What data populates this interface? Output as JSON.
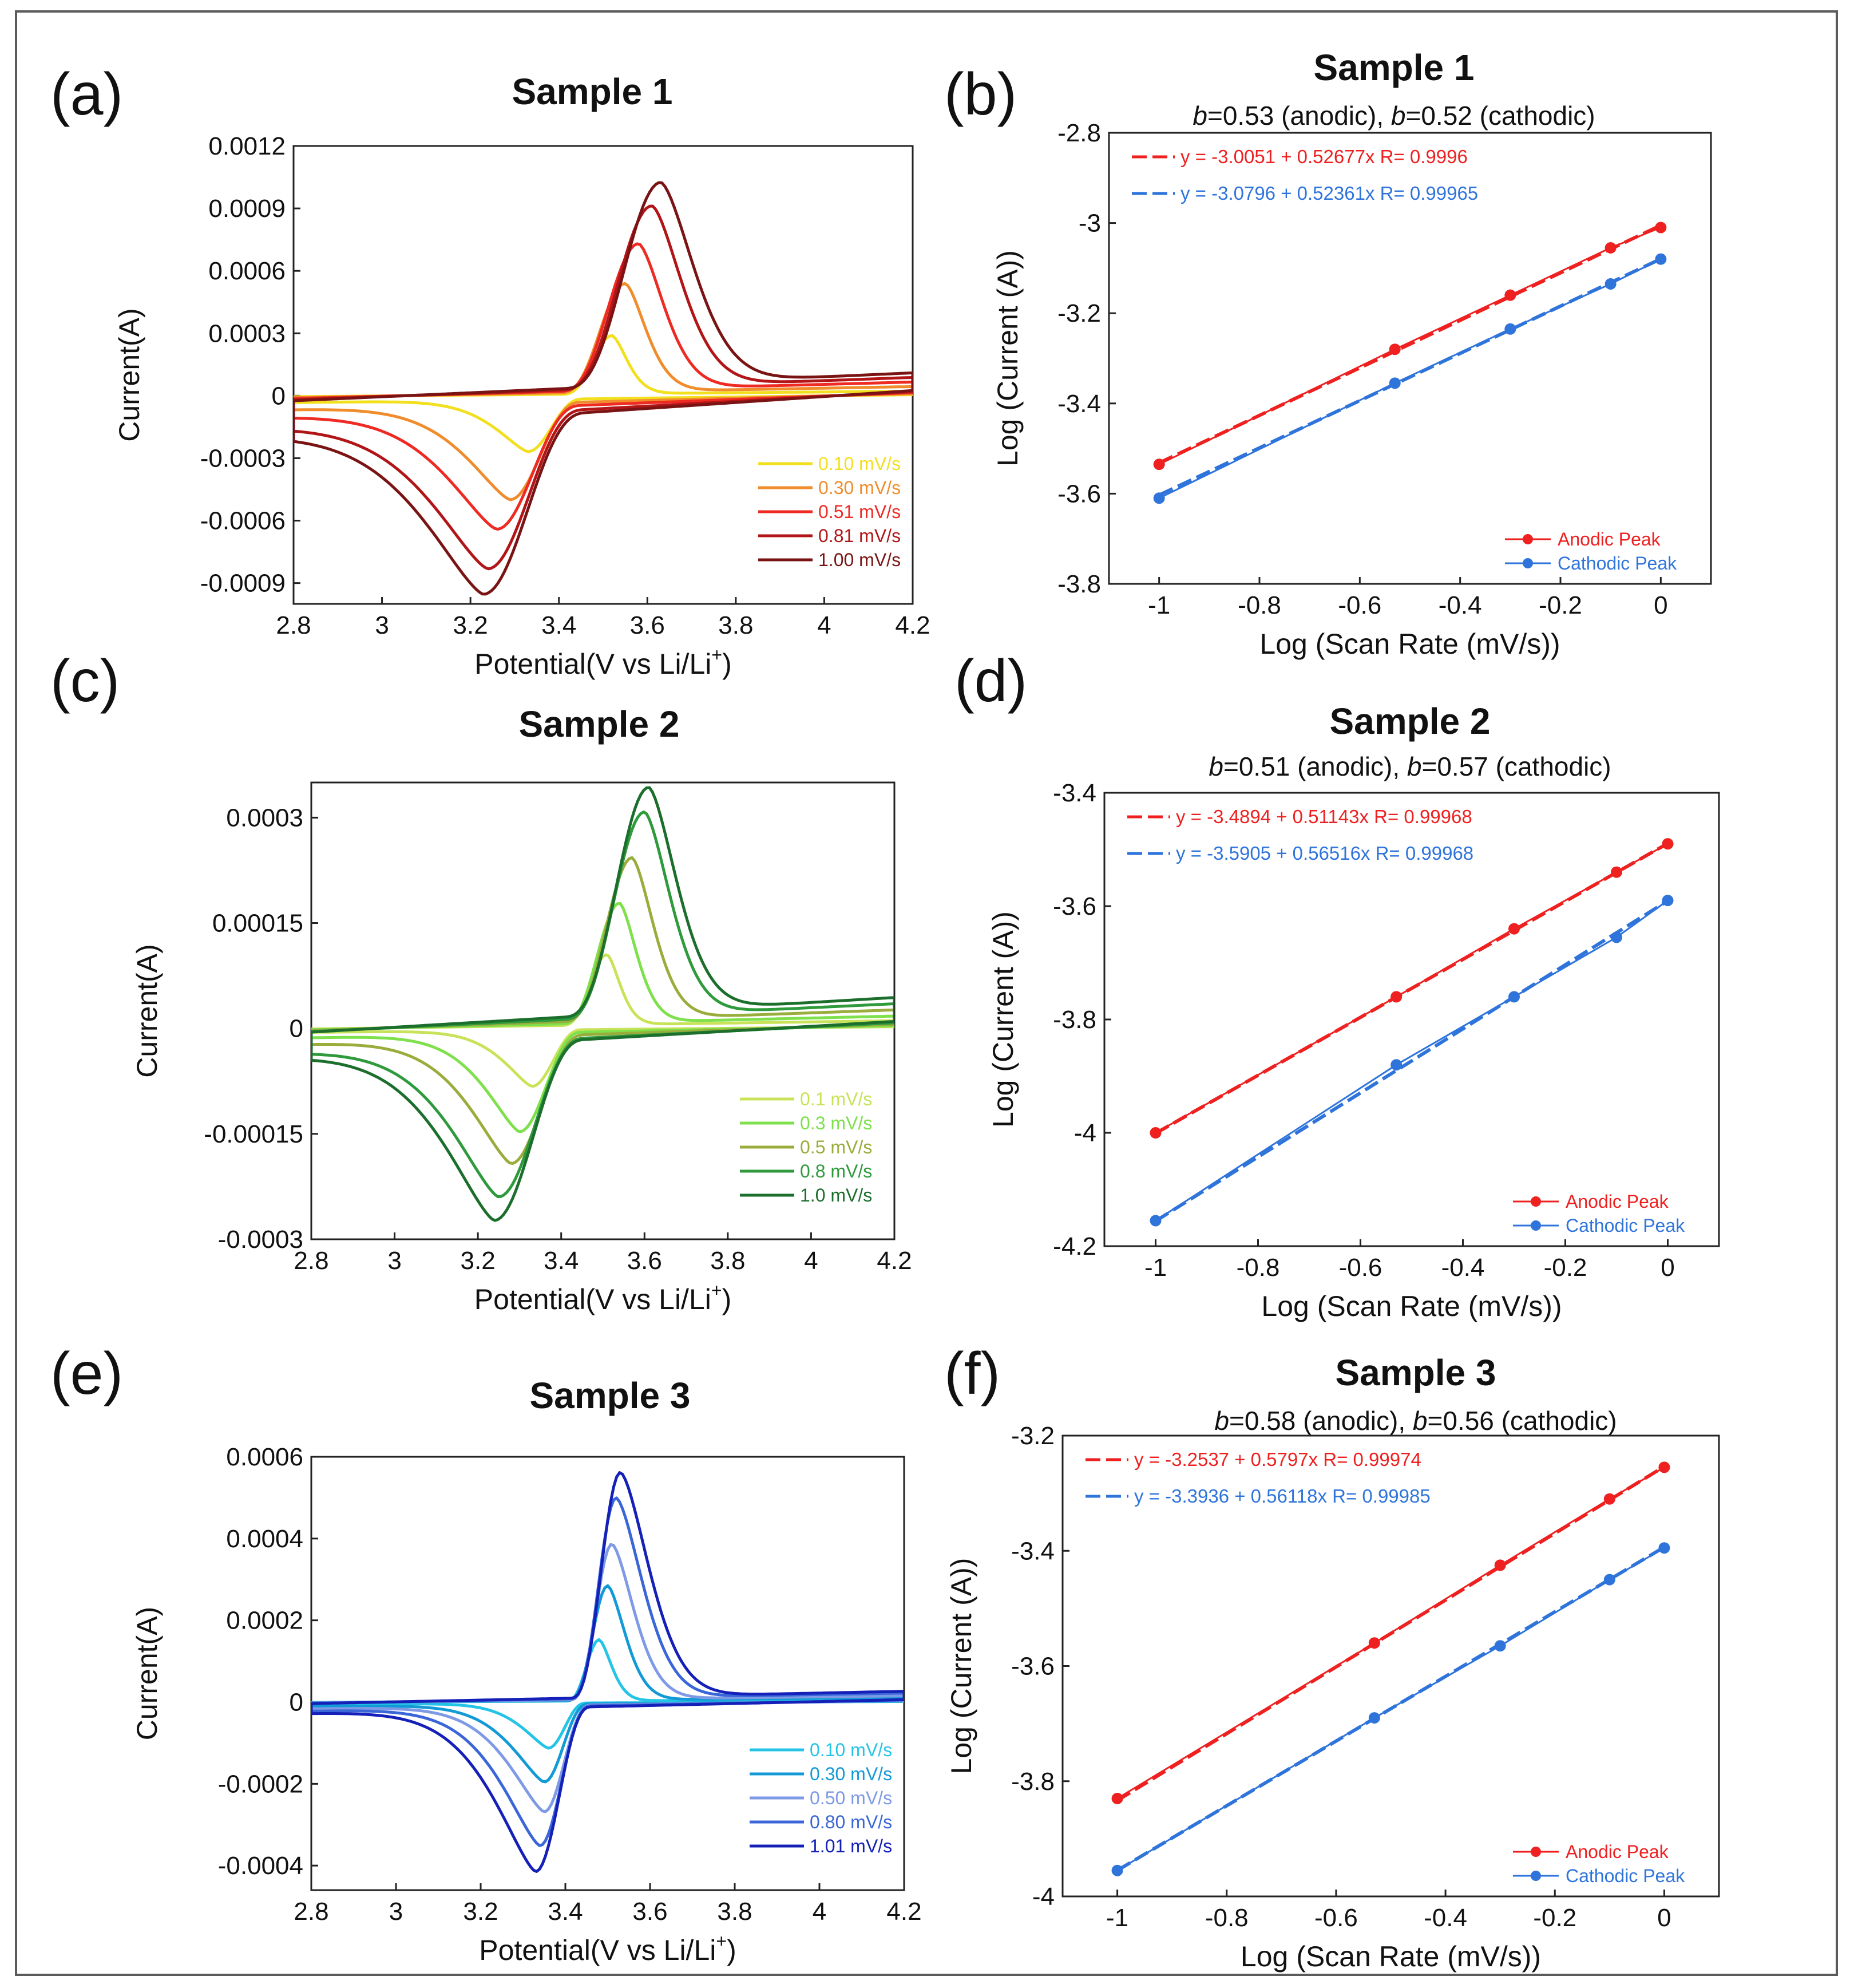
{
  "chart_data": [
    {
      "id": "a",
      "type": "line",
      "letter": "(a)",
      "title": "Sample 1",
      "xlabel": "Potential(V vs Li/Li",
      "xlabel_sup": "+",
      "xlabel_end": ")",
      "ylabel": "Current(A)",
      "xlim": [
        2.8,
        4.2
      ],
      "ylim": [
        -0.001,
        0.0012
      ],
      "xticks": [
        2.8,
        3,
        3.2,
        3.4,
        3.6,
        3.8,
        4,
        4.2
      ],
      "xtick_labels": [
        "2.8",
        "3",
        "3.2",
        "3.4",
        "3.6",
        "3.8",
        "4",
        "4.2"
      ],
      "yticks": [
        0.0012,
        0.0009,
        0.0006,
        0.0003,
        0,
        -0.0003,
        -0.0006,
        -0.0009
      ],
      "ytick_labels": [
        "0.0012",
        "0.0009",
        "0.0006",
        "0.0003",
        "0",
        "-0.0003",
        "-0.0006",
        "-0.0009"
      ],
      "series": [
        {
          "name": "0.10 mV/s",
          "color": "#f2df1e",
          "anodic_peak": [
            3.52,
            0.00028
          ],
          "cathodic_peak": [
            3.33,
            -0.00025
          ],
          "base_neg": -3e-05,
          "base_pos": 1e-05,
          "w_a": 0.033,
          "w_c": 0.048
        },
        {
          "name": "0.30 mV/s",
          "color": "#f08c2c",
          "anodic_peak": [
            3.55,
            0.00052
          ],
          "cathodic_peak": [
            3.29,
            -0.00046
          ],
          "base_neg": -6e-05,
          "base_pos": 2e-05,
          "w_a": 0.045,
          "w_c": 0.065
        },
        {
          "name": "0.51 mV/s",
          "color": "#ee2a22",
          "anodic_peak": [
            3.58,
            0.0007
          ],
          "cathodic_peak": [
            3.26,
            -0.00058
          ],
          "base_neg": -9e-05,
          "base_pos": 3e-05,
          "w_a": 0.055,
          "w_c": 0.075
        },
        {
          "name": "0.81 mV/s",
          "color": "#b11518",
          "anodic_peak": [
            3.61,
            0.00087
          ],
          "cathodic_peak": [
            3.24,
            -0.00074
          ],
          "base_neg": -0.00013,
          "base_pos": 4e-05,
          "w_a": 0.065,
          "w_c": 0.085
        },
        {
          "name": "1.00 mV/s",
          "color": "#7a1414",
          "anodic_peak": [
            3.63,
            0.00097
          ],
          "cathodic_peak": [
            3.23,
            -0.00084
          ],
          "base_neg": -0.00016,
          "base_pos": 5e-05,
          "w_a": 0.072,
          "w_c": 0.09
        }
      ]
    },
    {
      "id": "b",
      "type": "line",
      "letter": "(b)",
      "title": "Sample 1",
      "subtitle": [
        {
          "t": "b",
          "i": true
        },
        {
          "t": "=0.53 (anodic), ",
          "i": false
        },
        {
          "t": "b",
          "i": true
        },
        {
          "t": "=0.52 (cathodic)",
          "i": false
        }
      ],
      "xlabel": "Log (Scan Rate (mV/s))",
      "ylabel": "Log (Current (A))",
      "xlim": [
        -1.1,
        0.1
      ],
      "ylim": [
        -3.8,
        -2.8
      ],
      "xticks": [
        -1,
        -0.8,
        -0.6,
        -0.4,
        -0.2,
        0
      ],
      "xtick_labels": [
        "-1",
        "-0.8",
        "-0.6",
        "-0.4",
        "-0.2",
        "0"
      ],
      "yticks": [
        -2.8,
        -3,
        -3.2,
        -3.4,
        -3.6,
        -3.8
      ],
      "ytick_labels": [
        "-2.8",
        "-3",
        "-3.2",
        "-3.4",
        "-3.6",
        "-3.8"
      ],
      "series": [
        {
          "name": "Anodic Peak",
          "color": "#ee2020",
          "x": [
            -1,
            -0.53,
            -0.3,
            -0.1,
            0
          ],
          "y": [
            -3.535,
            -3.28,
            -3.16,
            -3.055,
            -3.01
          ],
          "fit": "y = -3.0051 + 0.52677x   R= 0.9996",
          "intercept": -3.0051,
          "slope": 0.52677
        },
        {
          "name": "Cathodic Peak",
          "color": "#2f74db",
          "x": [
            -1,
            -0.53,
            -0.3,
            -0.1,
            0
          ],
          "y": [
            -3.61,
            -3.355,
            -3.235,
            -3.135,
            -3.08
          ],
          "fit": "y = -3.0796 + 0.52361x   R= 0.99965",
          "intercept": -3.0796,
          "slope": 0.52361
        }
      ]
    },
    {
      "id": "c",
      "type": "line",
      "letter": "(c)",
      "title": "Sample 2",
      "xlabel": "Potential(V vs Li/Li",
      "xlabel_sup": "+",
      "xlabel_end": ")",
      "ylabel": "Current(A)",
      "xlim": [
        2.8,
        4.2
      ],
      "ylim": [
        -0.0003,
        0.00035
      ],
      "xticks": [
        2.8,
        3,
        3.2,
        3.4,
        3.6,
        3.8,
        4,
        4.2
      ],
      "xtick_labels": [
        "2.8",
        "3",
        "3.2",
        "3.4",
        "3.6",
        "3.8",
        "4",
        "4.2"
      ],
      "yticks": [
        0.0003,
        0.00015,
        0,
        -0.00015,
        -0.0003
      ],
      "ytick_labels": [
        "0.0003",
        "0.00015",
        "0",
        "-0.00015",
        "-0.0003"
      ],
      "series": [
        {
          "name": "0.1 mV/s",
          "color": "#c8e35a",
          "anodic_peak": [
            3.51,
            0.0001
          ],
          "cathodic_peak": [
            3.33,
            -8e-05
          ],
          "base_neg": -5e-06,
          "base_pos": 5e-06,
          "w_a": 0.03,
          "w_c": 0.045
        },
        {
          "name": "0.3 mV/s",
          "color": "#7ee04a",
          "anodic_peak": [
            3.54,
            0.00017
          ],
          "cathodic_peak": [
            3.3,
            -0.00014
          ],
          "base_neg": -1.2e-05,
          "base_pos": 8e-06,
          "w_a": 0.04,
          "w_c": 0.055
        },
        {
          "name": "0.5 mV/s",
          "color": "#99ad3c",
          "anodic_peak": [
            3.57,
            0.00023
          ],
          "cathodic_peak": [
            3.28,
            -0.00018
          ],
          "base_neg": -2e-05,
          "base_pos": 1.2e-05,
          "w_a": 0.05,
          "w_c": 0.065
        },
        {
          "name": "0.8 mV/s",
          "color": "#2e9a3c",
          "anodic_peak": [
            3.6,
            0.00029
          ],
          "cathodic_peak": [
            3.25,
            -0.00022
          ],
          "base_neg": -3e-05,
          "base_pos": 1.6e-05,
          "w_a": 0.06,
          "w_c": 0.075
        },
        {
          "name": "1.0 mV/s",
          "color": "#1b6e2c",
          "anodic_peak": [
            3.61,
            0.00032
          ],
          "cathodic_peak": [
            3.24,
            -0.00025
          ],
          "base_neg": -3.5e-05,
          "base_pos": 2e-05,
          "w_a": 0.065,
          "w_c": 0.08
        }
      ]
    },
    {
      "id": "d",
      "type": "line",
      "letter": "(d)",
      "title": "Sample 2",
      "subtitle": [
        {
          "t": "b",
          "i": true
        },
        {
          "t": "=0.51 (anodic), ",
          "i": false
        },
        {
          "t": "b",
          "i": true
        },
        {
          "t": "=0.57 (cathodic)",
          "i": false
        }
      ],
      "xlabel": "Log (Scan Rate (mV/s))",
      "ylabel": "Log (Current (A))",
      "xlim": [
        -1.1,
        0.1
      ],
      "ylim": [
        -4.2,
        -3.4
      ],
      "xticks": [
        -1,
        -0.8,
        -0.6,
        -0.4,
        -0.2,
        0
      ],
      "xtick_labels": [
        "-1",
        "-0.8",
        "-0.6",
        "-0.4",
        "-0.2",
        "0"
      ],
      "yticks": [
        -3.4,
        -3.6,
        -3.8,
        -4,
        -4.2
      ],
      "ytick_labels": [
        "-3.4",
        "-3.6",
        "-3.8",
        "-4",
        "-4.2"
      ],
      "series": [
        {
          "name": "Anodic Peak",
          "color": "#ee2020",
          "x": [
            -1,
            -0.53,
            -0.3,
            -0.1,
            0
          ],
          "y": [
            -4.0,
            -3.76,
            -3.64,
            -3.54,
            -3.49
          ],
          "fit": "y = -3.4894 + 0.51143x   R= 0.99968",
          "intercept": -3.4894,
          "slope": 0.51143
        },
        {
          "name": "Cathodic Peak",
          "color": "#2f74db",
          "x": [
            -1,
            -0.53,
            -0.3,
            -0.1,
            0
          ],
          "y": [
            -4.155,
            -3.88,
            -3.76,
            -3.655,
            -3.59
          ],
          "fit": "y = -3.5905 + 0.56516x   R= 0.99968",
          "intercept": -3.5905,
          "slope": 0.56516
        }
      ]
    },
    {
      "id": "e",
      "type": "line",
      "letter": "(e)",
      "title": "Sample 3",
      "xlabel": "Potential(V vs Li/Li",
      "xlabel_sup": "+",
      "xlabel_end": ")",
      "ylabel": "Current(A)",
      "xlim": [
        2.8,
        4.2
      ],
      "ylim": [
        -0.00046,
        0.0006
      ],
      "xticks": [
        2.8,
        3,
        3.2,
        3.4,
        3.6,
        3.8,
        4,
        4.2
      ],
      "xtick_labels": [
        "2.8",
        "3",
        "3.2",
        "3.4",
        "3.6",
        "3.8",
        "4",
        "4.2"
      ],
      "yticks": [
        0.0006,
        0.0004,
        0.0002,
        0,
        -0.0002,
        -0.0004
      ],
      "ytick_labels": [
        "0.0006",
        "0.0004",
        "0.0002",
        "0",
        "-0.0002",
        "-0.0004"
      ],
      "series": [
        {
          "name": "0.10 mV/s",
          "color": "#24c4e6",
          "anodic_peak": [
            3.48,
            0.00015
          ],
          "cathodic_peak": [
            3.36,
            -0.00011
          ],
          "base_neg": -5e-06,
          "base_pos": 3e-06,
          "w_a": 0.028,
          "w_c": 0.04
        },
        {
          "name": "0.30 mV/s",
          "color": "#129ad6",
          "anodic_peak": [
            3.5,
            0.00028
          ],
          "cathodic_peak": [
            3.35,
            -0.00019
          ],
          "base_neg": -1e-05,
          "base_pos": 5e-06,
          "w_a": 0.04,
          "w_c": 0.05
        },
        {
          "name": "0.50 mV/s",
          "color": "#7e9ae6",
          "anodic_peak": [
            3.51,
            0.00038
          ],
          "cathodic_peak": [
            3.35,
            -0.00026
          ],
          "base_neg": -1.5e-05,
          "base_pos": 7e-06,
          "w_a": 0.05,
          "w_c": 0.055
        },
        {
          "name": "0.80 mV/s",
          "color": "#3a66d8",
          "anodic_peak": [
            3.52,
            0.00049
          ],
          "cathodic_peak": [
            3.34,
            -0.00034
          ],
          "base_neg": -2e-05,
          "base_pos": 1e-05,
          "w_a": 0.06,
          "w_c": 0.06
        },
        {
          "name": "1.01 mV/s",
          "color": "#1420b8",
          "anodic_peak": [
            3.53,
            0.00055
          ],
          "cathodic_peak": [
            3.33,
            -0.0004
          ],
          "base_neg": -2.5e-05,
          "base_pos": 1.2e-05,
          "w_a": 0.065,
          "w_c": 0.065
        }
      ]
    },
    {
      "id": "f",
      "type": "line",
      "letter": "(f)",
      "title": "Sample 3",
      "subtitle": [
        {
          "t": "b",
          "i": true
        },
        {
          "t": "=0.58 (anodic), ",
          "i": false
        },
        {
          "t": "b",
          "i": true
        },
        {
          "t": "=0.56 (cathodic)",
          "i": false
        }
      ],
      "xlabel": "Log (Scan Rate (mV/s))",
      "ylabel": "Log (Current (A))",
      "xlim": [
        -1.1,
        0.1
      ],
      "ylim": [
        -4.0,
        -3.2
      ],
      "xticks": [
        -1,
        -0.8,
        -0.6,
        -0.4,
        -0.2,
        0
      ],
      "xtick_labels": [
        "-1",
        "-0.8",
        "-0.6",
        "-0.4",
        "-0.2",
        "0"
      ],
      "yticks": [
        -3.2,
        -3.4,
        -3.6,
        -3.8,
        -4
      ],
      "ytick_labels": [
        "-3.2",
        "-3.4",
        "-3.6",
        "-3.8",
        "-4"
      ],
      "series": [
        {
          "name": "Anodic Peak",
          "color": "#ee2020",
          "x": [
            -1,
            -0.53,
            -0.3,
            -0.1,
            0
          ],
          "y": [
            -3.83,
            -3.56,
            -3.425,
            -3.31,
            -3.255
          ],
          "fit": "y = -3.2537 + 0.5797x   R= 0.99974",
          "intercept": -3.2537,
          "slope": 0.5797
        },
        {
          "name": "Cathodic Peak",
          "color": "#2f74db",
          "x": [
            -1,
            -0.53,
            -0.3,
            -0.1,
            0
          ],
          "y": [
            -3.955,
            -3.69,
            -3.565,
            -3.45,
            -3.395
          ],
          "fit": "y = -3.3936 + 0.56118x   R= 0.99985",
          "intercept": -3.3936,
          "slope": 0.56118
        }
      ]
    }
  ]
}
